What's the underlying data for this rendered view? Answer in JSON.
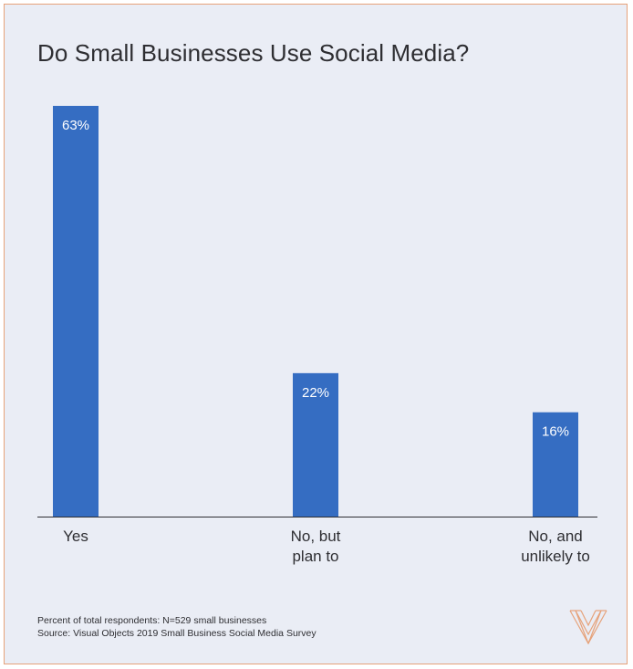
{
  "colors": {
    "bar": "#356dc2",
    "axis": "#2e2e32",
    "background": "#eaedf5",
    "border": "#e6a27a",
    "logo": "#e6a27a"
  },
  "logo_icon": "visual-objects-v-logo-icon",
  "chart_data": {
    "type": "bar",
    "title": "Do Small Businesses Use Social Media?",
    "categories": [
      [
        "Yes"
      ],
      [
        "No, but",
        "plan to"
      ],
      [
        "No, and",
        "unlikely to"
      ]
    ],
    "values": [
      63,
      22,
      16
    ],
    "data_labels": [
      "63%",
      "22%",
      "16%"
    ],
    "ylim": [
      0,
      63
    ],
    "grid": false,
    "legend": "none"
  },
  "footnotes": {
    "respondents": "Percent of total respondents: N=529 small businesses",
    "source": "Source: Visual Objects 2019 Small Business Social Media Survey"
  }
}
